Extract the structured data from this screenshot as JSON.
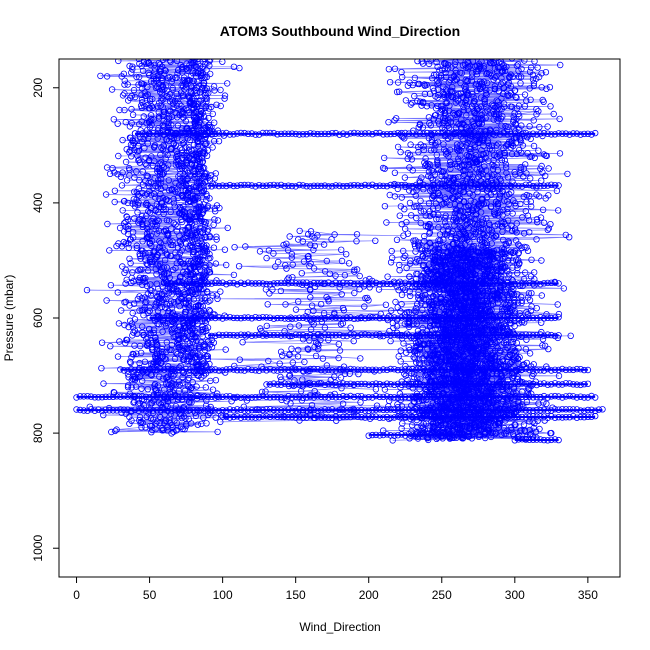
{
  "chart_data": {
    "type": "scatter",
    "title": "ATOM3 Southbound Wind_Direction",
    "xlabel": "Wind_Direction",
    "ylabel": "Pressure (mbar)",
    "xlim": [
      -12,
      372
    ],
    "ylim": [
      1050,
      150
    ],
    "y_axis_inverted": true,
    "x_ticks": [
      0,
      50,
      100,
      150,
      200,
      250,
      300,
      350
    ],
    "y_ticks": [
      200,
      400,
      600,
      800,
      1000
    ],
    "grid": false,
    "legend": "none",
    "marker": "open-circle",
    "connected_by_lines": true,
    "series_color": "#0000FF",
    "clusters": [
      {
        "x_center": 60,
        "x_spread": 30,
        "p_min": 150,
        "p_max": 800,
        "n": 1300
      },
      {
        "x_center": 82,
        "x_spread": 10,
        "p_min": 150,
        "p_max": 700,
        "n": 500
      },
      {
        "x_center": 272,
        "x_spread": 42,
        "p_min": 150,
        "p_max": 810,
        "n": 2200
      },
      {
        "x_center": 262,
        "x_spread": 30,
        "p_min": 480,
        "p_max": 810,
        "n": 1300
      },
      {
        "x_center": 165,
        "x_spread": 45,
        "p_min": 450,
        "p_max": 780,
        "n": 240
      }
    ],
    "horizontal_runs": [
      {
        "p": 280,
        "x_from": 40,
        "x_to": 355
      },
      {
        "p": 370,
        "x_from": 90,
        "x_to": 330
      },
      {
        "p": 540,
        "x_from": 60,
        "x_to": 330
      },
      {
        "p": 600,
        "x_from": 50,
        "x_to": 330
      },
      {
        "p": 630,
        "x_from": 90,
        "x_to": 330
      },
      {
        "p": 690,
        "x_from": 30,
        "x_to": 350
      },
      {
        "p": 715,
        "x_from": 130,
        "x_to": 350
      },
      {
        "p": 737,
        "x_from": 0,
        "x_to": 355
      },
      {
        "p": 760,
        "x_from": 0,
        "x_to": 360
      },
      {
        "p": 772,
        "x_from": 100,
        "x_to": 355
      },
      {
        "p": 803,
        "x_from": 200,
        "x_to": 265
      },
      {
        "p": 812,
        "x_from": 300,
        "x_to": 330
      }
    ]
  }
}
